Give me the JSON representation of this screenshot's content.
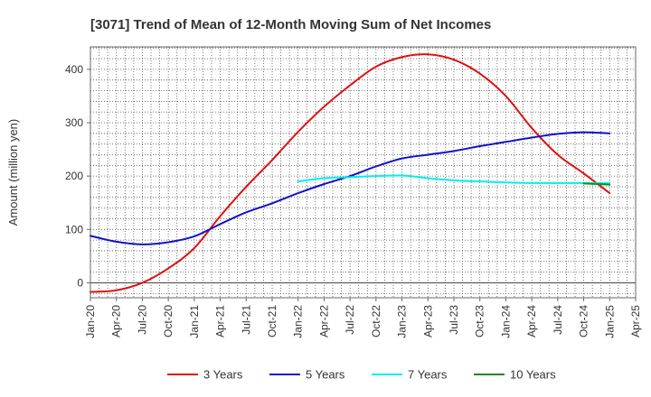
{
  "chart_data": {
    "type": "line",
    "title": "[3071]  Trend of Mean of 12-Month Moving Sum of Net Incomes",
    "ylabel": "Amount (million yen)",
    "xlabel": "",
    "ylim": [
      -28,
      442
    ],
    "yticks": [
      0,
      100,
      200,
      300,
      400
    ],
    "x_categories": [
      "Jan-20",
      "Apr-20",
      "Jul-20",
      "Oct-20",
      "Jan-21",
      "Apr-21",
      "Jul-21",
      "Oct-21",
      "Jan-22",
      "Apr-22",
      "Jul-22",
      "Oct-22",
      "Jan-23",
      "Apr-23",
      "Jul-23",
      "Oct-23",
      "Jan-24",
      "Apr-24",
      "Jul-24",
      "Oct-24",
      "Jan-25",
      "Apr-25"
    ],
    "grid": true,
    "legend_position": "bottom",
    "series": [
      {
        "name": "3 Years",
        "color": "#dd1111",
        "x": [
          "Jan-20",
          "Apr-20",
          "Jul-20",
          "Oct-20",
          "Jan-21",
          "Apr-21",
          "Jul-21",
          "Oct-21",
          "Jan-22",
          "Apr-22",
          "Jul-22",
          "Oct-22",
          "Jan-23",
          "Apr-23",
          "Jul-23",
          "Oct-23",
          "Jan-24",
          "Apr-24",
          "Jul-24",
          "Oct-24",
          "Jan-25"
        ],
        "values": [
          -17,
          -14,
          0,
          27,
          65,
          125,
          180,
          230,
          283,
          330,
          370,
          405,
          423,
          428,
          418,
          392,
          350,
          290,
          240,
          205,
          168
        ]
      },
      {
        "name": "5 Years",
        "color": "#1111cc",
        "x": [
          "Jan-20",
          "Apr-20",
          "Jul-20",
          "Oct-20",
          "Jan-21",
          "Apr-21",
          "Jul-21",
          "Oct-21",
          "Jan-22",
          "Apr-22",
          "Jul-22",
          "Oct-22",
          "Jan-23",
          "Apr-23",
          "Jul-23",
          "Oct-23",
          "Jan-24",
          "Apr-24",
          "Jul-24",
          "Oct-24",
          "Jan-25"
        ],
        "values": [
          88,
          77,
          72,
          76,
          87,
          110,
          132,
          149,
          168,
          185,
          200,
          218,
          233,
          240,
          247,
          256,
          264,
          272,
          279,
          282,
          280
        ]
      },
      {
        "name": "7 Years",
        "color": "#00eeee",
        "x": [
          "Jan-22",
          "Apr-22",
          "Jul-22",
          "Oct-22",
          "Jan-23",
          "Apr-23",
          "Jul-23",
          "Oct-23",
          "Jan-24",
          "Apr-24",
          "Jul-24",
          "Oct-24",
          "Jan-25"
        ],
        "values": [
          190,
          196,
          198,
          200,
          201,
          196,
          192,
          190,
          188,
          187,
          187,
          187,
          187
        ]
      },
      {
        "name": "10 Years",
        "color": "#228822",
        "x": [
          "Oct-24",
          "Jan-25"
        ],
        "values": [
          186,
          184
        ]
      }
    ]
  }
}
